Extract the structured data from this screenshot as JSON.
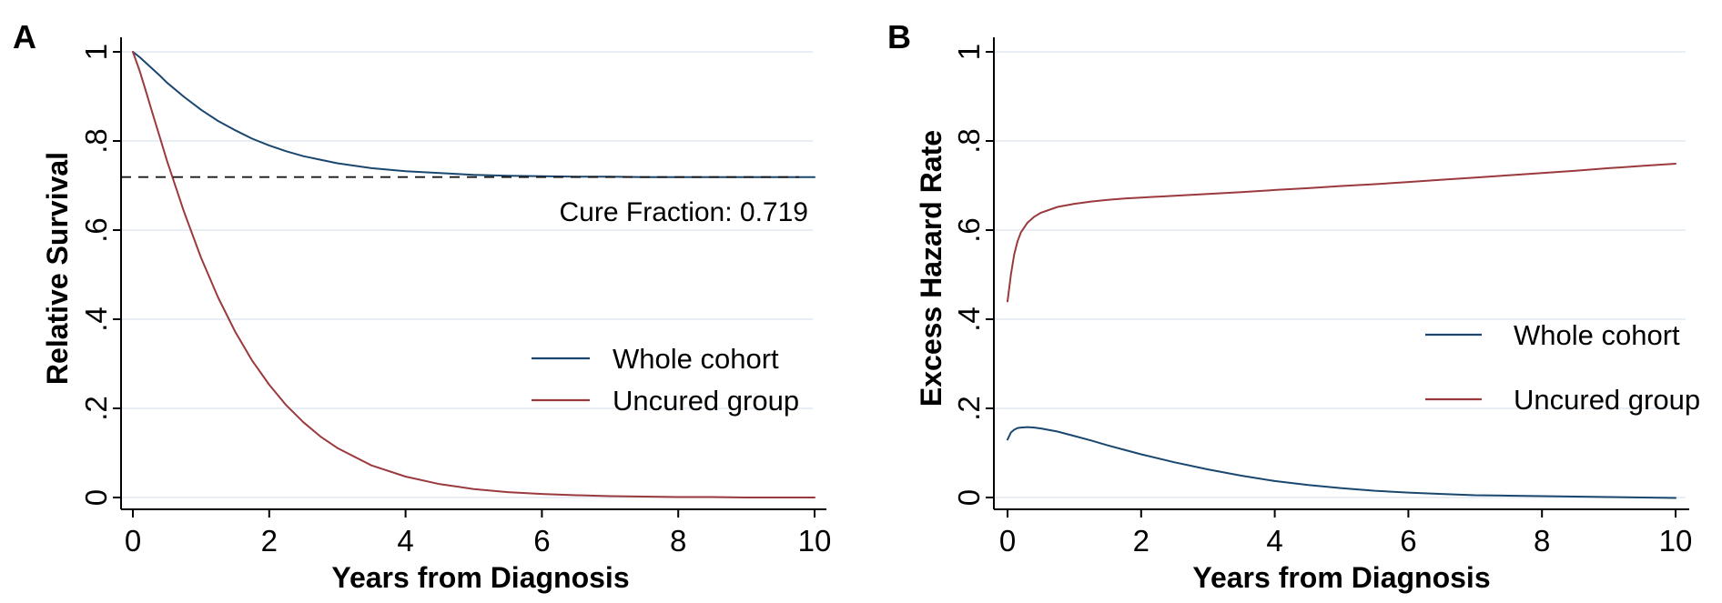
{
  "panels": [
    {
      "label": "A",
      "y_axis_title": "Relative Survival",
      "x_axis_title": "Years from Diagnosis",
      "annotation": "Cure Fraction: 0.719"
    },
    {
      "label": "B",
      "y_axis_title": "Excess Hazard Rate",
      "x_axis_title": "Years from Diagnosis"
    }
  ],
  "legend": {
    "items": [
      "Whole cohort",
      "Uncured group"
    ]
  },
  "colors": {
    "navy": "#1a476f",
    "maroon": "#9a3a3e",
    "panel_letter": "#1f5c99",
    "gridline": "#e8eef3",
    "axis": "#000000",
    "dashed_line": "#1a1a1a",
    "background": "#ffffff"
  },
  "chart_data": [
    {
      "type": "line",
      "title": "Relative survival with cure fraction",
      "xlabel": "Years from Diagnosis",
      "ylabel": "Relative Survival",
      "xlim": [
        0,
        10
      ],
      "ylim": [
        0,
        1
      ],
      "x_ticks": [
        0,
        2,
        4,
        6,
        8,
        10
      ],
      "x_tick_labels": [
        "0",
        "2",
        "4",
        "6",
        "8",
        "10"
      ],
      "y_ticks": [
        0,
        0.2,
        0.4,
        0.6,
        0.8,
        1
      ],
      "y_tick_labels": [
        "0",
        ".2",
        ".4",
        ".6",
        ".8",
        "1"
      ],
      "grid": true,
      "legend_position": "inside-right",
      "cure_fraction": 0.719,
      "annotation": "Cure Fraction: 0.719",
      "series": [
        {
          "name": "Whole cohort",
          "color_key": "navy",
          "x": [
            0,
            0.1,
            0.2,
            0.3,
            0.4,
            0.5,
            0.75,
            1,
            1.25,
            1.5,
            1.75,
            2,
            2.25,
            2.5,
            2.75,
            3,
            3.5,
            4,
            4.5,
            5,
            5.5,
            6,
            6.5,
            7,
            7.5,
            8,
            8.5,
            9,
            9.5,
            10
          ],
          "y": [
            1,
            0.988,
            0.974,
            0.96,
            0.946,
            0.931,
            0.899,
            0.87,
            0.845,
            0.824,
            0.805,
            0.79,
            0.777,
            0.766,
            0.758,
            0.75,
            0.739,
            0.732,
            0.728,
            0.724,
            0.722,
            0.721,
            0.72,
            0.72,
            0.719,
            0.719,
            0.719,
            0.719,
            0.719,
            0.719
          ]
        },
        {
          "name": "Uncured group",
          "color_key": "maroon",
          "x": [
            0,
            0.1,
            0.2,
            0.3,
            0.4,
            0.5,
            0.75,
            1,
            1.25,
            1.5,
            1.75,
            2,
            2.25,
            2.5,
            2.75,
            3,
            3.5,
            4,
            4.5,
            5,
            5.5,
            6,
            6.5,
            7,
            7.5,
            8,
            8.5,
            9,
            9.5,
            10
          ],
          "y": [
            1,
            0.957,
            0.907,
            0.856,
            0.806,
            0.756,
            0.641,
            0.538,
            0.449,
            0.372,
            0.307,
            0.253,
            0.207,
            0.169,
            0.137,
            0.111,
            0.072,
            0.047,
            0.03,
            0.019,
            0.012,
            0.008,
            0.005,
            0.003,
            0.002,
            0.001,
            0.001,
            0,
            0,
            0
          ]
        }
      ]
    },
    {
      "type": "line",
      "title": "Excess hazard rate",
      "xlabel": "Years from Diagnosis",
      "ylabel": "Excess Hazard Rate",
      "xlim": [
        0,
        10
      ],
      "ylim": [
        0,
        1
      ],
      "x_ticks": [
        0,
        2,
        4,
        6,
        8,
        10
      ],
      "x_tick_labels": [
        "0",
        "2",
        "4",
        "6",
        "8",
        "10"
      ],
      "y_ticks": [
        0,
        0.2,
        0.4,
        0.6,
        0.8,
        1
      ],
      "y_tick_labels": [
        "0",
        ".2",
        ".4",
        ".6",
        ".8",
        "1"
      ],
      "grid": true,
      "legend_position": "inside-right",
      "series": [
        {
          "name": "Whole cohort",
          "color_key": "navy",
          "x": [
            0,
            0.05,
            0.1,
            0.15,
            0.2,
            0.3,
            0.4,
            0.5,
            0.75,
            1,
            1.25,
            1.5,
            1.75,
            2,
            2.5,
            3,
            3.5,
            4,
            4.5,
            5,
            5.5,
            6,
            6.5,
            7,
            7.5,
            8,
            8.5,
            9,
            9.5,
            10
          ],
          "y": [
            0.13,
            0.146,
            0.152,
            0.156,
            0.157,
            0.158,
            0.157,
            0.155,
            0.148,
            0.138,
            0.128,
            0.117,
            0.107,
            0.097,
            0.079,
            0.063,
            0.049,
            0.037,
            0.028,
            0.021,
            0.015,
            0.011,
            0.008,
            0.005,
            0.004,
            0.003,
            0.002,
            0.001,
            0,
            -0.001
          ]
        },
        {
          "name": "Uncured group",
          "color_key": "maroon",
          "x": [
            0,
            0.05,
            0.1,
            0.15,
            0.2,
            0.3,
            0.4,
            0.5,
            0.75,
            1,
            1.25,
            1.5,
            1.75,
            2,
            2.5,
            3,
            3.5,
            4,
            4.5,
            5,
            5.5,
            6,
            6.5,
            7,
            7.5,
            8,
            8.5,
            9,
            9.5,
            10
          ],
          "y": [
            0.44,
            0.5,
            0.545,
            0.575,
            0.595,
            0.617,
            0.63,
            0.639,
            0.652,
            0.659,
            0.664,
            0.668,
            0.671,
            0.673,
            0.677,
            0.681,
            0.685,
            0.69,
            0.694,
            0.699,
            0.703,
            0.708,
            0.713,
            0.718,
            0.723,
            0.728,
            0.733,
            0.739,
            0.744,
            0.749
          ]
        }
      ]
    }
  ]
}
